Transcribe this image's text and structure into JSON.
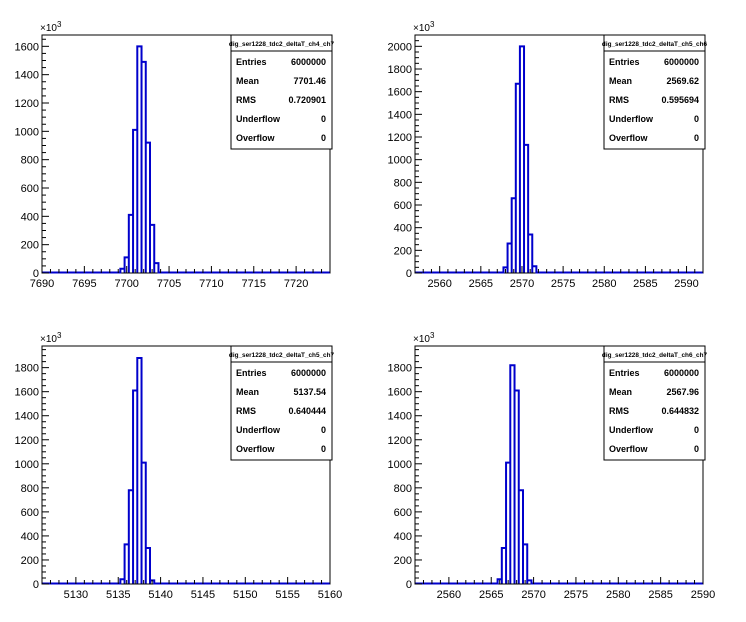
{
  "chart_data": [
    {
      "type": "histogram",
      "title": "",
      "stats_box": {
        "name": "dig_ser1228_tdc2_deltaT_ch4_ch7",
        "rows": [
          {
            "label": "Entries",
            "value": "6000000"
          },
          {
            "label": "Mean",
            "value": "7701.46"
          },
          {
            "label": "RMS",
            "value": "0.720901"
          },
          {
            "label": "Underflow",
            "value": "0"
          },
          {
            "label": "Overflow",
            "value": "0"
          }
        ]
      },
      "y_multiplier": "×10",
      "y_multiplier_exp": "3",
      "xlim": [
        7690,
        7724
      ],
      "ylim": [
        0,
        1680
      ],
      "x_ticks": [
        7690,
        7695,
        7700,
        7705,
        7710,
        7715,
        7720
      ],
      "y_ticks": [
        0,
        200,
        400,
        600,
        800,
        1000,
        1200,
        1400,
        1600
      ],
      "bin_width": 0.5,
      "bins": [
        {
          "x": 7699.5,
          "y": 30
        },
        {
          "x": 7700.0,
          "y": 110
        },
        {
          "x": 7700.5,
          "y": 410
        },
        {
          "x": 7701.0,
          "y": 1010
        },
        {
          "x": 7701.5,
          "y": 1600
        },
        {
          "x": 7702.0,
          "y": 1490
        },
        {
          "x": 7702.5,
          "y": 920
        },
        {
          "x": 7703.0,
          "y": 340
        },
        {
          "x": 7703.5,
          "y": 70
        }
      ]
    },
    {
      "type": "histogram",
      "title": "",
      "stats_box": {
        "name": "dig_ser1228_tdc2_deltaT_ch5_ch6",
        "rows": [
          {
            "label": "Entries",
            "value": "6000000"
          },
          {
            "label": "Mean",
            "value": "2569.62"
          },
          {
            "label": "RMS",
            "value": "0.595694"
          },
          {
            "label": "Underflow",
            "value": "0"
          },
          {
            "label": "Overflow",
            "value": "0"
          }
        ]
      },
      "y_multiplier": "×10",
      "y_multiplier_exp": "3",
      "xlim": [
        2557,
        2592
      ],
      "ylim": [
        0,
        2100
      ],
      "x_ticks": [
        2560,
        2565,
        2570,
        2575,
        2580,
        2585,
        2590
      ],
      "y_ticks": [
        0,
        200,
        400,
        600,
        800,
        1000,
        1200,
        1400,
        1600,
        1800,
        2000
      ],
      "bin_width": 0.5,
      "bins": [
        {
          "x": 2568.0,
          "y": 50
        },
        {
          "x": 2568.5,
          "y": 260
        },
        {
          "x": 2569.0,
          "y": 660
        },
        {
          "x": 2569.5,
          "y": 1670
        },
        {
          "x": 2570.0,
          "y": 2000
        },
        {
          "x": 2570.5,
          "y": 1130
        },
        {
          "x": 2571.0,
          "y": 340
        },
        {
          "x": 2571.5,
          "y": 60
        }
      ]
    },
    {
      "type": "histogram",
      "title": "",
      "stats_box": {
        "name": "dig_ser1228_tdc2_deltaT_ch5_ch7",
        "rows": [
          {
            "label": "Entries",
            "value": "6000000"
          },
          {
            "label": "Mean",
            "value": "5137.54"
          },
          {
            "label": "RMS",
            "value": "0.640444"
          },
          {
            "label": "Underflow",
            "value": "0"
          },
          {
            "label": "Overflow",
            "value": "0"
          }
        ]
      },
      "y_multiplier": "×10",
      "y_multiplier_exp": "3",
      "xlim": [
        5126,
        5160
      ],
      "ylim": [
        0,
        1980
      ],
      "x_ticks": [
        5130,
        5135,
        5140,
        5145,
        5150,
        5155,
        5160
      ],
      "y_ticks": [
        0,
        200,
        400,
        600,
        800,
        1000,
        1200,
        1400,
        1600,
        1800
      ],
      "bin_width": 0.5,
      "bins": [
        {
          "x": 5135.5,
          "y": 40
        },
        {
          "x": 5136.0,
          "y": 330
        },
        {
          "x": 5136.5,
          "y": 780
        },
        {
          "x": 5137.0,
          "y": 1610
        },
        {
          "x": 5137.5,
          "y": 1880
        },
        {
          "x": 5138.0,
          "y": 1010
        },
        {
          "x": 5138.5,
          "y": 300
        },
        {
          "x": 5139.0,
          "y": 30
        }
      ]
    },
    {
      "type": "histogram",
      "title": "",
      "stats_box": {
        "name": "dig_ser1228_tdc2_deltaT_ch6_ch7",
        "rows": [
          {
            "label": "Entries",
            "value": "6000000"
          },
          {
            "label": "Mean",
            "value": "2567.96"
          },
          {
            "label": "RMS",
            "value": "0.644832"
          },
          {
            "label": "Underflow",
            "value": "0"
          },
          {
            "label": "Overflow",
            "value": "0"
          }
        ]
      },
      "y_multiplier": "×10",
      "y_multiplier_exp": "3",
      "xlim": [
        2556,
        2590
      ],
      "ylim": [
        0,
        1980
      ],
      "x_ticks": [
        2560,
        2565,
        2570,
        2575,
        2580,
        2585,
        2590
      ],
      "y_ticks": [
        0,
        200,
        400,
        600,
        800,
        1000,
        1200,
        1400,
        1600,
        1800
      ],
      "bin_width": 0.5,
      "bins": [
        {
          "x": 2566.0,
          "y": 40
        },
        {
          "x": 2566.5,
          "y": 300
        },
        {
          "x": 2567.0,
          "y": 1010
        },
        {
          "x": 2567.5,
          "y": 1820
        },
        {
          "x": 2568.0,
          "y": 1610
        },
        {
          "x": 2568.5,
          "y": 780
        },
        {
          "x": 2569.0,
          "y": 330
        },
        {
          "x": 2569.5,
          "y": 30
        }
      ]
    }
  ],
  "style": {
    "line_color": "#0000cc",
    "axis_color": "#000000",
    "background": "#ffffff"
  }
}
